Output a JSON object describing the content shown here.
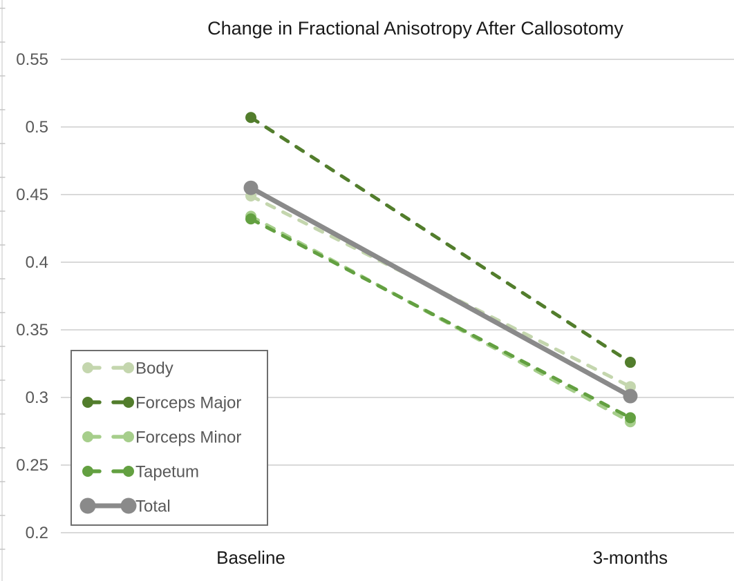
{
  "title": "Change in Fractional Anisotropy After Callosotomy",
  "chart_data": {
    "type": "line",
    "categories": [
      "Baseline",
      "3-months"
    ],
    "series": [
      {
        "name": "Body",
        "values": [
          0.449,
          0.308
        ],
        "color": "#c4d6ae",
        "style": "dashed",
        "line_width": 5,
        "marker_radius": 8
      },
      {
        "name": "Forceps Major",
        "values": [
          0.507,
          0.326
        ],
        "color": "#527d2c",
        "style": "dashed",
        "line_width": 5,
        "marker_radius": 8
      },
      {
        "name": "Forceps Minor",
        "values": [
          0.434,
          0.282
        ],
        "color": "#a6ce8b",
        "style": "dashed",
        "line_width": 5,
        "marker_radius": 8
      },
      {
        "name": "Tapetum",
        "values": [
          0.432,
          0.285
        ],
        "color": "#63a041",
        "style": "dashed",
        "line_width": 5,
        "marker_radius": 8
      },
      {
        "name": "Total",
        "values": [
          0.455,
          0.301
        ],
        "color": "#8a8a8a",
        "style": "solid",
        "line_width": 7,
        "marker_radius": 10.5
      }
    ],
    "ylim": [
      0.2,
      0.55
    ],
    "ytick_step": 0.05,
    "ytick_labels": [
      "0.55",
      "0.5",
      "0.45",
      "0.4",
      "0.35",
      "0.3",
      "0.25",
      "0.2"
    ],
    "ytick_values": [
      0.55,
      0.5,
      0.45,
      0.4,
      0.35,
      0.3,
      0.25,
      0.2
    ],
    "grid": true,
    "legend_position": "lower-left",
    "marker": "circle"
  },
  "colors": {
    "background": "#ffffff",
    "gridline": "#d9d9d9",
    "axis_tick_text": "#595959",
    "category_text": "#1a1a1a",
    "title_text": "#1a1a1a",
    "legend_border": "#6e6e6e",
    "legend_text": "#595959",
    "crop_axis_line": "#d7d7d7",
    "crop_axis_tick": "#c6c6c6"
  }
}
